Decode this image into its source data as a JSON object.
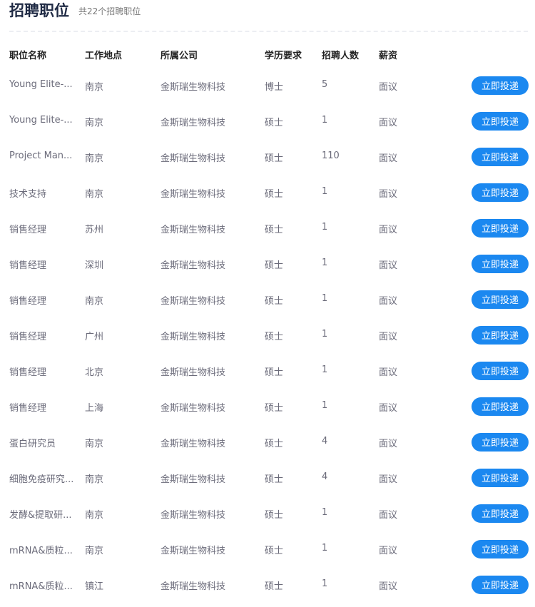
{
  "header": {
    "title": "招聘职位",
    "subtitle": "共22个招聘职位"
  },
  "columns": [
    "职位名称",
    "工作地点",
    "所属公司",
    "学历要求",
    "招聘人数",
    "薪资"
  ],
  "apply_label": "立即投递",
  "accent": "#1b88f0",
  "rows": [
    [
      "Young Elite-...",
      "南京",
      "金斯瑞生物科技",
      "博士",
      "5",
      "面议"
    ],
    [
      "Young Elite-...",
      "南京",
      "金斯瑞生物科技",
      "硕士",
      "1",
      "面议"
    ],
    [
      "Project Man...",
      "南京",
      "金斯瑞生物科技",
      "硕士",
      "110",
      "面议"
    ],
    [
      "技术支持",
      "南京",
      "金斯瑞生物科技",
      "硕士",
      "1",
      "面议"
    ],
    [
      "销售经理",
      "苏州",
      "金斯瑞生物科技",
      "硕士",
      "1",
      "面议"
    ],
    [
      "销售经理",
      "深圳",
      "金斯瑞生物科技",
      "硕士",
      "1",
      "面议"
    ],
    [
      "销售经理",
      "南京",
      "金斯瑞生物科技",
      "硕士",
      "1",
      "面议"
    ],
    [
      "销售经理",
      "广州",
      "金斯瑞生物科技",
      "硕士",
      "1",
      "面议"
    ],
    [
      "销售经理",
      "北京",
      "金斯瑞生物科技",
      "硕士",
      "1",
      "面议"
    ],
    [
      "销售经理",
      "上海",
      "金斯瑞生物科技",
      "硕士",
      "1",
      "面议"
    ],
    [
      "蛋白研究员",
      "南京",
      "金斯瑞生物科技",
      "硕士",
      "4",
      "面议"
    ],
    [
      "细胞免疫研究...",
      "南京",
      "金斯瑞生物科技",
      "硕士",
      "4",
      "面议"
    ],
    [
      "发酵&提取研...",
      "南京",
      "金斯瑞生物科技",
      "硕士",
      "1",
      "面议"
    ],
    [
      "mRNA&质粒...",
      "南京",
      "金斯瑞生物科技",
      "硕士",
      "1",
      "面议"
    ],
    [
      "mRNA&质粒...",
      "镇江",
      "金斯瑞生物科技",
      "硕士",
      "1",
      "面议"
    ]
  ]
}
